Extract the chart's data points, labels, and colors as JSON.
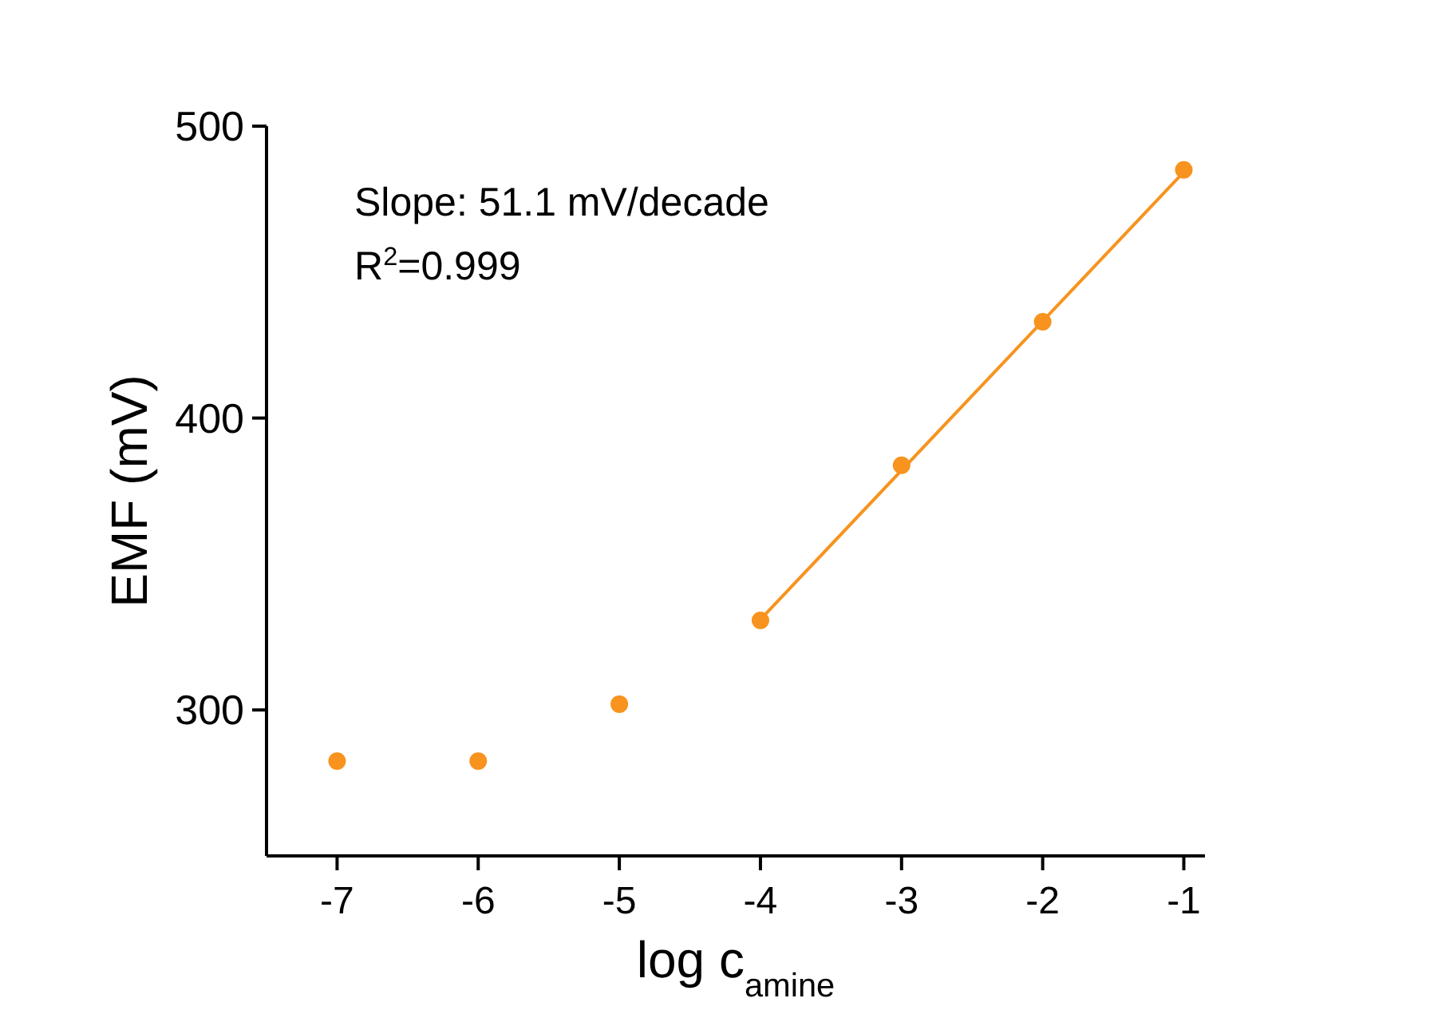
{
  "chart_data": {
    "type": "scatter",
    "xlabel": "log c$_{amine}$",
    "ylabel": "EMF (mV)",
    "annotations": [
      "Slope: 51.1 mV/decade",
      "R$^{2}$=0.999"
    ],
    "xlim": [
      -7.5,
      -0.85
    ],
    "xticks": [
      -7,
      -6,
      -5,
      -4,
      -3,
      -2,
      -1
    ],
    "ylim": [
      250,
      500
    ],
    "yticks": [
      300,
      400,
      500
    ],
    "grid": false,
    "marker": "circle",
    "series": [
      {
        "color": "#f7931e",
        "x": [
          -7,
          -6,
          -5,
          -4,
          -3,
          -2,
          -1
        ],
        "values": [
          282.5,
          282.5,
          302,
          330.7,
          383.8,
          433,
          485
        ]
      },
      {
        "type": "line",
        "color": "#f7931e",
        "x": [
          -4,
          -1
        ],
        "values": [
          331,
          484.3
        ],
        "marker": "none",
        "line_style": "solid"
      }
    ]
  }
}
